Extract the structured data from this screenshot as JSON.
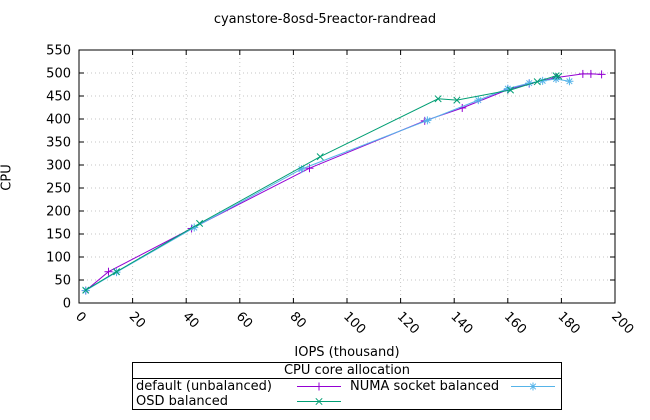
{
  "title": "cyanstore-8osd-5reactor-randread",
  "chart_data": {
    "type": "line",
    "title": "cyanstore-8osd-5reactor-randread",
    "xlabel": "IOPS (thousand)",
    "ylabel": "CPU",
    "xlim": [
      0,
      200
    ],
    "ylim": [
      0,
      550
    ],
    "xtick_step": 20,
    "ytick_step": 50,
    "grid": true,
    "grid_color": "#c6c6c6",
    "border_color": "#000000",
    "legend_title": "CPU core allocation",
    "legend_position": "bottom",
    "series": [
      {
        "name": "default (unbalanced)",
        "color": "#9400d3",
        "marker": "plus",
        "points": [
          [
            2.5,
            27
          ],
          [
            11,
            68
          ],
          [
            42,
            162
          ],
          [
            86,
            293
          ],
          [
            129,
            396
          ],
          [
            143,
            424
          ],
          [
            160,
            464
          ],
          [
            168,
            477
          ],
          [
            178,
            490
          ],
          [
            188,
            498
          ],
          [
            191,
            498
          ],
          [
            195,
            497
          ]
        ]
      },
      {
        "name": "NUMA socket balanced",
        "color": "#56b4e9",
        "marker": "asterisk",
        "points": [
          [
            2.5,
            27
          ],
          [
            14,
            67
          ],
          [
            43,
            164
          ],
          [
            83,
            291
          ],
          [
            130,
            397
          ],
          [
            149,
            441
          ],
          [
            160,
            466
          ],
          [
            168,
            478
          ],
          [
            173,
            483
          ],
          [
            178,
            487
          ],
          [
            183,
            482
          ]
        ]
      },
      {
        "name": "OSD balanced",
        "color": "#009e73",
        "marker": "cross",
        "points": [
          [
            2.5,
            28
          ],
          [
            14,
            68
          ],
          [
            45,
            173
          ],
          [
            90,
            318
          ],
          [
            134,
            444
          ],
          [
            141,
            441
          ],
          [
            161,
            463
          ],
          [
            171,
            481
          ],
          [
            178,
            494
          ],
          [
            179,
            493
          ]
        ]
      }
    ]
  }
}
